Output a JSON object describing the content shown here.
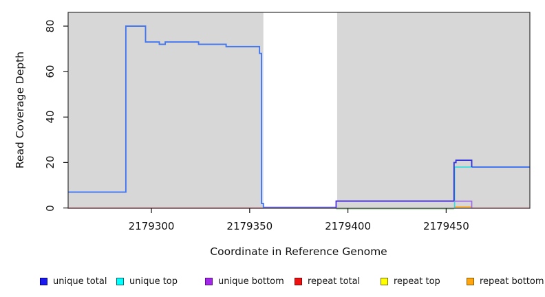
{
  "chart_data": {
    "type": "line",
    "title": "",
    "xlabel": "Coordinate in Reference Genome",
    "ylabel": "Read Coverage Depth",
    "xlim": [
      2179257.6,
      2179492.6
    ],
    "ylim": [
      0,
      86
    ],
    "grid": false,
    "x_ticks": [
      {
        "coord": 2179300,
        "label": "2179300"
      },
      {
        "coord": 2179350,
        "label": "2179350"
      },
      {
        "coord": 2179400,
        "label": "2179400"
      },
      {
        "coord": 2179450,
        "label": "2179450"
      }
    ],
    "y_ticks": [
      {
        "value": 0,
        "label": "0"
      },
      {
        "value": 20,
        "label": "20"
      },
      {
        "value": 40,
        "label": "40"
      },
      {
        "value": 60,
        "label": "60"
      },
      {
        "value": 80,
        "label": "80"
      }
    ],
    "background": {
      "page_fill": "#FFFFFF",
      "plot_fill": "#D7D7D7",
      "uncovered_white_region": [
        2179357,
        2179394.5
      ],
      "border_color": "#333333"
    },
    "series": [
      {
        "name": "unique total",
        "color": "#2222EE",
        "steps": [
          [
            2179257.6,
            7
          ],
          [
            2179287,
            80
          ],
          [
            2179297,
            73
          ],
          [
            2179304,
            72
          ],
          [
            2179307,
            73
          ],
          [
            2179324,
            72
          ],
          [
            2179338,
            71
          ],
          [
            2179355,
            68
          ],
          [
            2179356,
            2
          ],
          [
            2179357,
            0
          ],
          [
            2179394,
            3
          ],
          [
            2179454,
            20
          ],
          [
            2179455,
            21
          ],
          [
            2179463,
            18
          ],
          [
            2179492.6,
            18
          ]
        ]
      },
      {
        "name": "unique top",
        "color": "#00FFFF",
        "steps": [
          [
            2179257.6,
            7
          ],
          [
            2179287,
            80
          ],
          [
            2179297,
            73
          ],
          [
            2179304,
            72
          ],
          [
            2179307,
            73
          ],
          [
            2179324,
            72
          ],
          [
            2179338,
            71
          ],
          [
            2179355,
            68
          ],
          [
            2179356,
            2
          ],
          [
            2179357,
            0
          ],
          [
            2179454,
            18
          ],
          [
            2179492.6,
            18
          ]
        ]
      },
      {
        "name": "unique bottom",
        "color": "#A227E8",
        "steps": [
          [
            2179257.6,
            0
          ],
          [
            2179394,
            3
          ],
          [
            2179463,
            0
          ],
          [
            2179492.6,
            0
          ]
        ]
      },
      {
        "name": "repeat total",
        "color": "#EE1111",
        "steps": [
          [
            2179257.6,
            0
          ],
          [
            2179492.6,
            0
          ]
        ]
      },
      {
        "name": "repeat top",
        "color": "#FFFF00",
        "steps": [
          [
            2179257.6,
            0
          ],
          [
            2179492.6,
            0
          ]
        ]
      },
      {
        "name": "repeat bottom",
        "color": "#FFA60F",
        "steps": [
          [
            2179257.6,
            0
          ],
          [
            2179492.6,
            0
          ]
        ]
      }
    ],
    "render_segments": [
      {
        "name": "repeat-total-baseline-left",
        "color": "#DC5E74",
        "w": 1.5,
        "step": false,
        "dy": 0,
        "pts": [
          [
            2179257.6,
            0
          ],
          [
            2179357,
            0
          ]
        ]
      },
      {
        "name": "zero-line-in-gap",
        "color": "#5B51E6",
        "w": 1.6,
        "step": false,
        "dy": -1,
        "pts": [
          [
            2179357,
            0
          ],
          [
            2179394,
            0
          ]
        ]
      },
      {
        "name": "overlap-green-baseline",
        "color": "#8CCD8C",
        "w": 1.5,
        "step": false,
        "dy": 1.3,
        "pts": [
          [
            2179394,
            0
          ],
          [
            2179454,
            0
          ]
        ]
      },
      {
        "name": "baseline-pink-right",
        "color": "#E27C93",
        "w": 1.5,
        "step": false,
        "dy": 0,
        "pts": [
          [
            2179463,
            0
          ],
          [
            2179492.6,
            0
          ]
        ]
      },
      {
        "name": "repeat-bottom-segment",
        "color": "#FFA516",
        "w": 1.7,
        "step": false,
        "dy": -1.3,
        "pts": [
          [
            2179454,
            0
          ],
          [
            2179463,
            0
          ]
        ]
      },
      {
        "name": "unique-top-line",
        "color": "#35E0DE",
        "w": 1.7,
        "step": false,
        "dy": 0,
        "pts": [
          [
            2179454.3,
            0
          ],
          [
            2179454.3,
            18
          ],
          [
            2179492.6,
            18
          ]
        ]
      },
      {
        "name": "unique-total-main-curve",
        "color": "#4377F2",
        "w": 1.9,
        "step": true,
        "dy": 0,
        "pts": [
          [
            2179257.6,
            7
          ],
          [
            2179287,
            80
          ],
          [
            2179297,
            73
          ],
          [
            2179304,
            72
          ],
          [
            2179307,
            73
          ],
          [
            2179324,
            72
          ],
          [
            2179338,
            71
          ],
          [
            2179355,
            68
          ],
          [
            2179356,
            2
          ],
          [
            2179357,
            0
          ]
        ]
      },
      {
        "name": "unique-total-right-18",
        "color": "#4377F2",
        "w": 1.9,
        "step": true,
        "dy": 0,
        "pts": [
          [
            2179463,
            18
          ],
          [
            2179492.6,
            18
          ]
        ]
      },
      {
        "name": "unique-total-step-20-21",
        "color": "#3434DC",
        "w": 1.9,
        "step": true,
        "dy": 0,
        "pts": [
          [
            2179394,
            3
          ],
          [
            2179454,
            20
          ],
          [
            2179455,
            21
          ],
          [
            2179463,
            18
          ]
        ]
      },
      {
        "name": "unique-bottom-overlapped",
        "color": "#4B30D8",
        "w": 1.9,
        "step": false,
        "dy": 0,
        "pts": [
          [
            2179394,
            0
          ],
          [
            2179394,
            3
          ],
          [
            2179454,
            3
          ]
        ]
      },
      {
        "name": "unique-bottom-solo",
        "color": "#9D6BE8",
        "w": 1.7,
        "step": false,
        "dy": 0,
        "pts": [
          [
            2179454,
            3
          ],
          [
            2179463,
            3
          ],
          [
            2179463,
            0
          ]
        ]
      }
    ],
    "legend": {
      "position": "bottom",
      "items": [
        {
          "label": "unique total",
          "fill": "#1A1AEE",
          "border": "#00008B"
        },
        {
          "label": "unique top",
          "fill": "#00FFFF",
          "border": "#006B6B"
        },
        {
          "label": "unique bottom",
          "fill": "#A227E8",
          "border": "#5A0F87"
        },
        {
          "label": "repeat total",
          "fill": "#EE1111",
          "border": "#8B0000"
        },
        {
          "label": "repeat top",
          "fill": "#FFFF00",
          "border": "#707000"
        },
        {
          "label": "repeat bottom",
          "fill": "#FFA60F",
          "border": "#8B5A00"
        }
      ]
    }
  }
}
